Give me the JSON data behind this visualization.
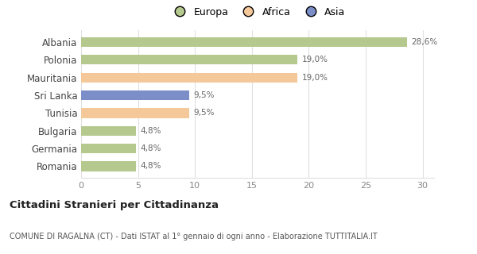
{
  "categories": [
    "Albania",
    "Polonia",
    "Mauritania",
    "Sri Lanka",
    "Tunisia",
    "Bulgaria",
    "Germania",
    "Romania"
  ],
  "values": [
    28.6,
    19.0,
    19.0,
    9.5,
    9.5,
    4.8,
    4.8,
    4.8
  ],
  "bar_colors": [
    "#b5c98e",
    "#b5c98e",
    "#f5c89a",
    "#7b8ec8",
    "#f5c89a",
    "#b5c98e",
    "#b5c98e",
    "#b5c98e"
  ],
  "labels": [
    "28,6%",
    "19,0%",
    "19,0%",
    "9,5%",
    "9,5%",
    "4,8%",
    "4,8%",
    "4,8%"
  ],
  "legend": [
    {
      "label": "Europa",
      "color": "#b5c98e"
    },
    {
      "label": "Africa",
      "color": "#f5c89a"
    },
    {
      "label": "Asia",
      "color": "#7b8ec8"
    }
  ],
  "xlim": [
    0,
    31
  ],
  "xticks": [
    0,
    5,
    10,
    15,
    20,
    25,
    30
  ],
  "title": "Cittadini Stranieri per Cittadinanza",
  "subtitle": "COMUNE DI RAGALNA (CT) - Dati ISTAT al 1° gennaio di ogni anno - Elaborazione TUTTITALIA.IT",
  "background_color": "#ffffff",
  "grid_color": "#e0e0e0"
}
